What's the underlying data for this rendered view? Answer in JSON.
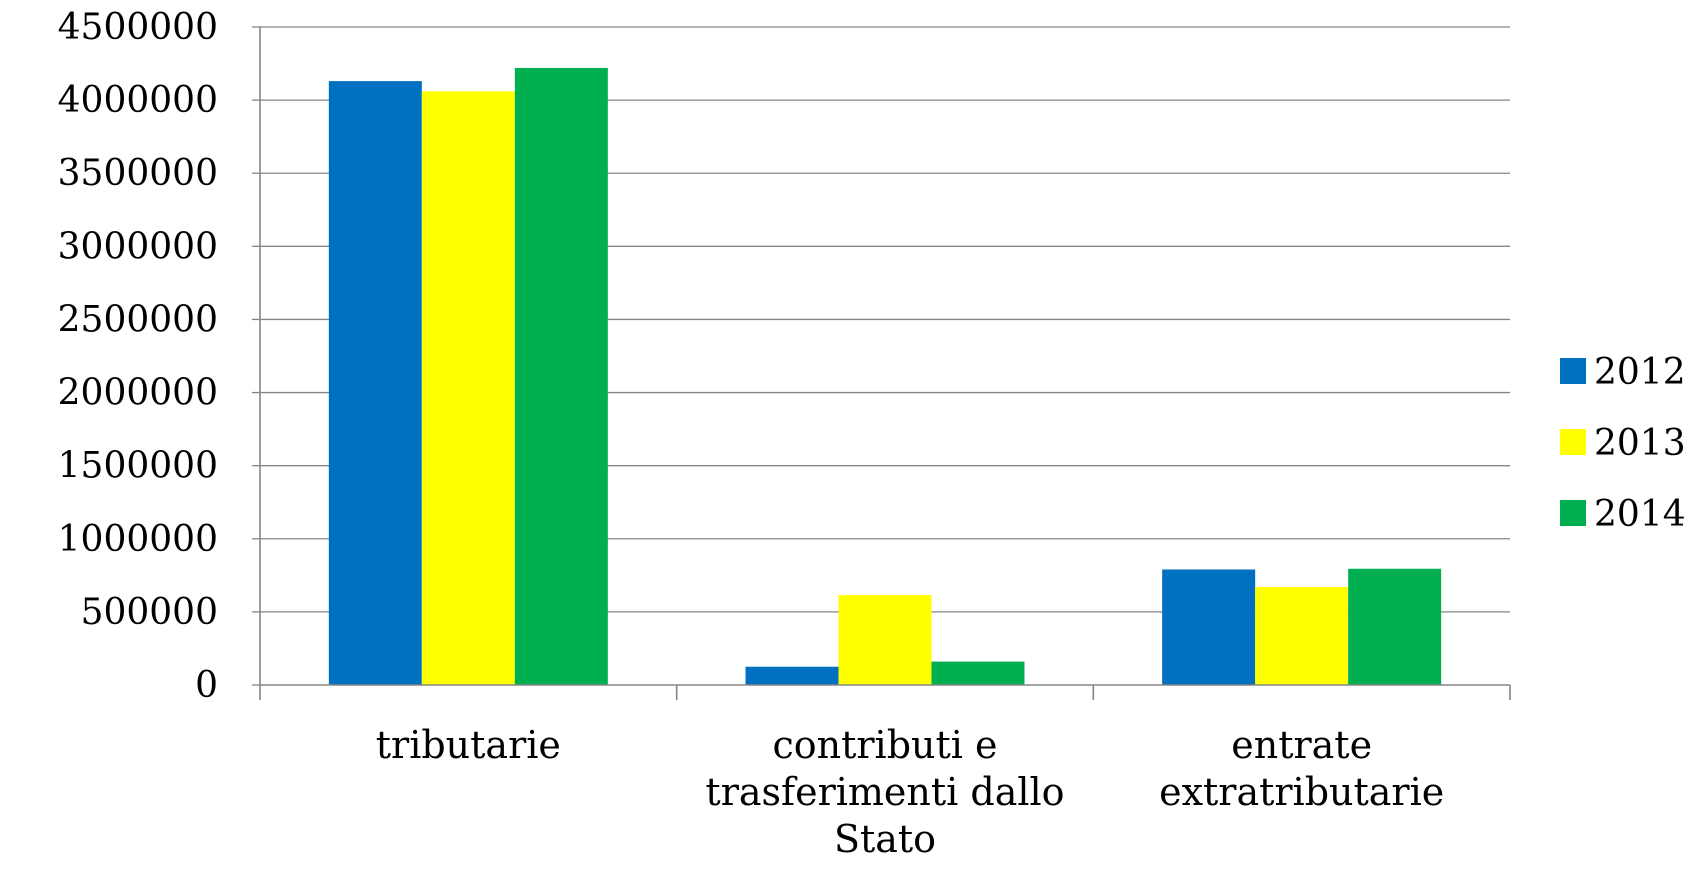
{
  "chart_data": {
    "type": "bar",
    "categories": [
      [
        "tributarie"
      ],
      [
        "contributi e",
        "trasferimenti dallo",
        "Stato"
      ],
      [
        "entrate",
        "extratributarie"
      ]
    ],
    "series": [
      {
        "name": "2012",
        "color": "#0070C0",
        "values": [
          4130000,
          125000,
          790000
        ]
      },
      {
        "name": "2013",
        "color": "#FFFF00",
        "values": [
          4060000,
          615000,
          670000
        ]
      },
      {
        "name": "2014",
        "color": "#00B050",
        "values": [
          4220000,
          160000,
          795000
        ]
      }
    ],
    "yticks": [
      "0",
      "500000",
      "1000000",
      "1500000",
      "2000000",
      "2500000",
      "3000000",
      "3500000",
      "4000000",
      "4500000"
    ],
    "ylim": [
      0,
      4500000
    ],
    "grid": true,
    "gridline_color": "#868686",
    "legend_position": "right"
  }
}
